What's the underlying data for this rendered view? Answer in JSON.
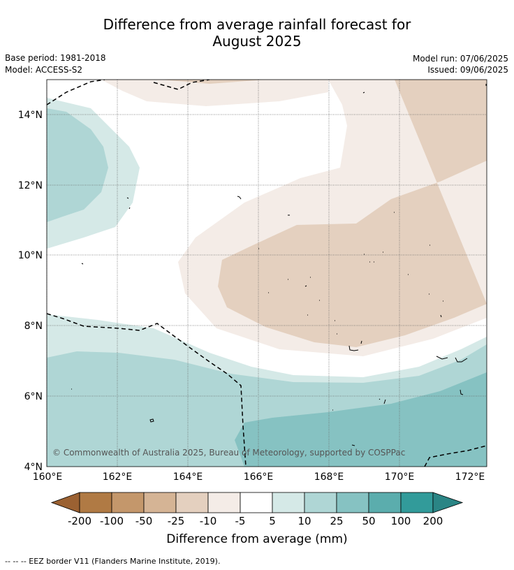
{
  "title_line1": "Difference from average rainfall forecast for",
  "title_line2": "August 2025",
  "base_period": "Base period: 1981-2018",
  "model": "Model: ACCESS-S2",
  "model_run": "Model run: 07/06/2025",
  "issued": "Issued: 09/06/2025",
  "copyright": "© Commonwealth of Australia 2025, Bureau of Meteorology, supported by COSPPac",
  "footnote": "-- -- -- EEZ border V11 (Flanders Marine Institute, 2019).",
  "colorbar_title": "Difference from average (mm)",
  "colorbar": {
    "labels": [
      "-200",
      "-100",
      "-50",
      "-25",
      "-10",
      "-5",
      "5",
      "10",
      "25",
      "50",
      "100",
      "200"
    ],
    "colors": [
      "#9b6132",
      "#b07a44",
      "#c4976b",
      "#d5b495",
      "#e4d0bf",
      "#f4ece7",
      "#ffffff",
      "#d5e9e7",
      "#afd6d5",
      "#86c2c2",
      "#5badad",
      "#329b9a",
      "#2a8585"
    ]
  },
  "axes": {
    "lat_labels": [
      "14°N",
      "12°N",
      "10°N",
      "8°N",
      "6°N",
      "4°N"
    ],
    "lon_labels": [
      "160°E",
      "162°E",
      "164°E",
      "166°E",
      "168°E",
      "170°E",
      "172°E"
    ]
  }
}
